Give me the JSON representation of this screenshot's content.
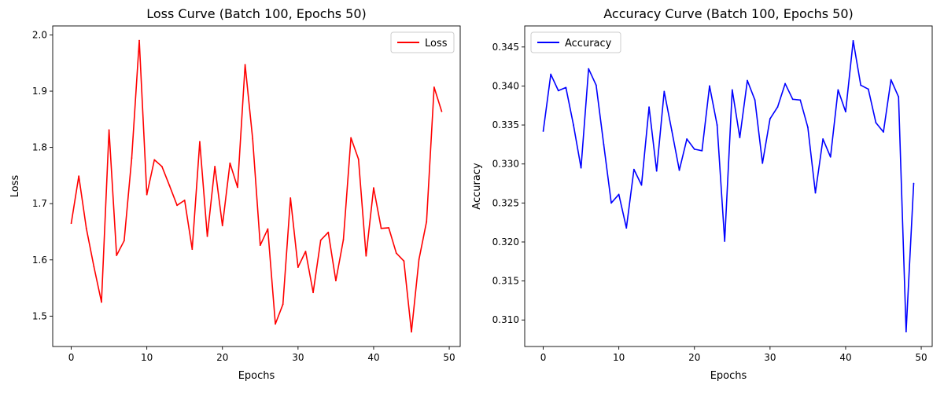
{
  "chart_data": [
    {
      "type": "line",
      "title": "Loss Curve (Batch 100, Epochs 50)",
      "xlabel": "Epochs",
      "ylabel": "Loss",
      "xlim": [
        -2.45,
        51.45
      ],
      "ylim": [
        1.446,
        2.016
      ],
      "xticks": [
        0,
        10,
        20,
        30,
        40,
        50
      ],
      "xtick_labels": [
        "0",
        "10",
        "20",
        "30",
        "40",
        "50"
      ],
      "yticks": [
        1.5,
        1.6,
        1.7,
        1.8,
        1.9,
        2.0
      ],
      "ytick_labels": [
        "1.5",
        "1.6",
        "1.7",
        "1.8",
        "1.9",
        "2.0"
      ],
      "grid": false,
      "legend_position": "upper-right",
      "series": [
        {
          "name": "Loss",
          "color": "#ff0000",
          "x": [
            0,
            1,
            2,
            3,
            4,
            5,
            6,
            7,
            8,
            9,
            10,
            11,
            12,
            13,
            14,
            15,
            16,
            17,
            18,
            19,
            20,
            21,
            22,
            23,
            24,
            25,
            26,
            27,
            28,
            29,
            30,
            31,
            32,
            33,
            34,
            35,
            36,
            37,
            38,
            39,
            40,
            41,
            42,
            43,
            44,
            45,
            46,
            47,
            48,
            49
          ],
          "values": [
            1.665,
            1.749,
            1.656,
            1.588,
            1.525,
            1.831,
            1.608,
            1.634,
            1.781,
            1.99,
            1.716,
            1.778,
            1.766,
            1.732,
            1.697,
            1.706,
            1.619,
            1.81,
            1.642,
            1.766,
            1.661,
            1.772,
            1.729,
            1.947,
            1.815,
            1.626,
            1.655,
            1.486,
            1.521,
            1.71,
            1.587,
            1.615,
            1.542,
            1.635,
            1.649,
            1.563,
            1.636,
            1.817,
            1.779,
            1.607,
            1.728,
            1.656,
            1.657,
            1.612,
            1.598,
            1.472,
            1.601,
            1.668,
            1.907,
            1.864
          ]
        }
      ]
    },
    {
      "type": "line",
      "title": "Accuracy Curve (Batch 100, Epochs 50)",
      "xlabel": "Epochs",
      "ylabel": "Accuracy",
      "xlim": [
        -2.45,
        51.45
      ],
      "ylim": [
        0.3066,
        0.3477
      ],
      "xticks": [
        0,
        10,
        20,
        30,
        40,
        50
      ],
      "xtick_labels": [
        "0",
        "10",
        "20",
        "30",
        "40",
        "50"
      ],
      "yticks": [
        0.31,
        0.315,
        0.32,
        0.325,
        0.33,
        0.335,
        0.34,
        0.345
      ],
      "ytick_labels": [
        "0.310",
        "0.315",
        "0.320",
        "0.325",
        "0.330",
        "0.335",
        "0.340",
        "0.345"
      ],
      "grid": false,
      "legend_position": "upper-left",
      "series": [
        {
          "name": "Accuracy",
          "color": "#0000ff",
          "x": [
            0,
            1,
            2,
            3,
            4,
            5,
            6,
            7,
            8,
            9,
            10,
            11,
            12,
            13,
            14,
            15,
            16,
            17,
            18,
            19,
            20,
            21,
            22,
            23,
            24,
            25,
            26,
            27,
            28,
            29,
            30,
            31,
            32,
            33,
            34,
            35,
            36,
            37,
            38,
            39,
            40,
            41,
            42,
            43,
            44,
            45,
            46,
            47,
            48,
            49
          ],
          "values": [
            0.3342,
            0.3415,
            0.3394,
            0.3398,
            0.335,
            0.3295,
            0.3422,
            0.3401,
            0.3325,
            0.325,
            0.3261,
            0.3218,
            0.3293,
            0.3273,
            0.3373,
            0.3291,
            0.3393,
            0.3343,
            0.3292,
            0.3332,
            0.3319,
            0.3317,
            0.34,
            0.335,
            0.3201,
            0.3395,
            0.3334,
            0.3407,
            0.3382,
            0.3301,
            0.3358,
            0.3373,
            0.3403,
            0.3383,
            0.3382,
            0.3347,
            0.3263,
            0.3332,
            0.3309,
            0.3395,
            0.3367,
            0.3458,
            0.3401,
            0.3396,
            0.3353,
            0.3341,
            0.3408,
            0.3386,
            0.3085,
            0.3275
          ]
        }
      ]
    }
  ]
}
